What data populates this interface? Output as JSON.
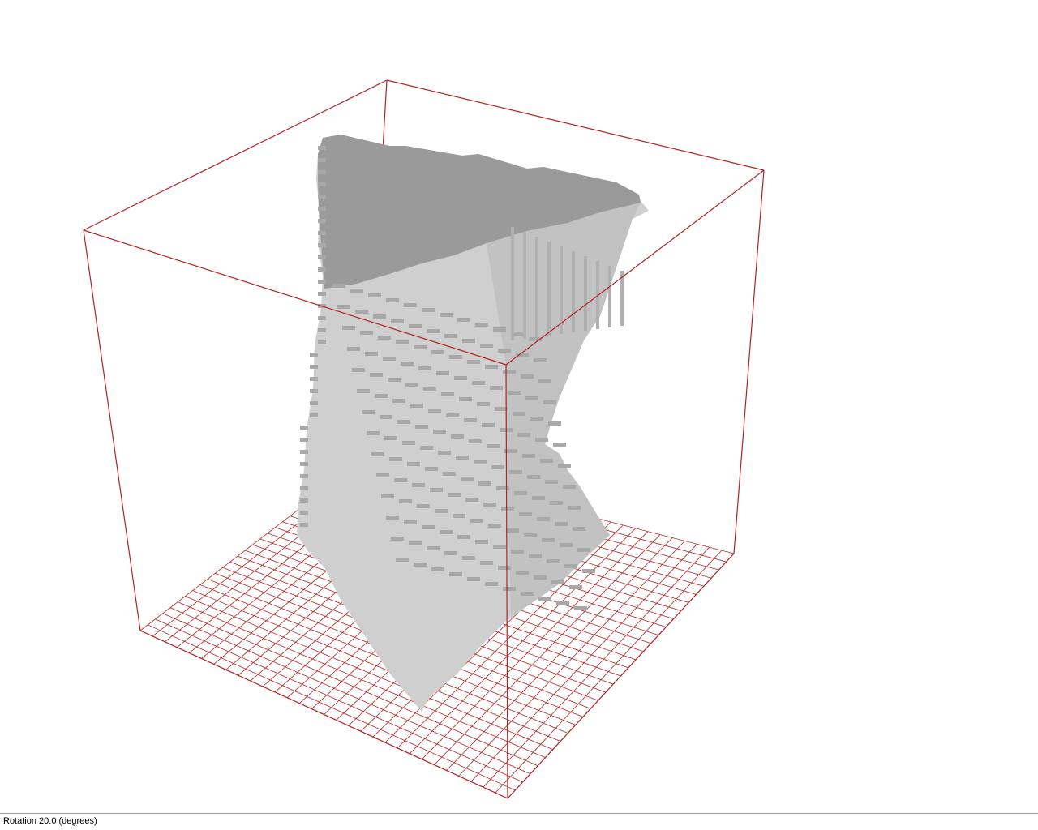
{
  "status_bar": {
    "rotation_label": "Rotation",
    "rotation_value": "20.0",
    "rotation_unit": "(degrees)"
  },
  "colors": {
    "background": "#ffffff",
    "bounding_box": "#b22222",
    "floor_grid": "#b22222",
    "voxel_top": "#9a9a9a",
    "voxel_light": "#d8d8d8",
    "voxel_mid": "#c4c4c4",
    "voxel_shadow": "#a6a6a6"
  },
  "scene": {
    "object": "voxel-model",
    "floor_grid_divisions": 30
  }
}
